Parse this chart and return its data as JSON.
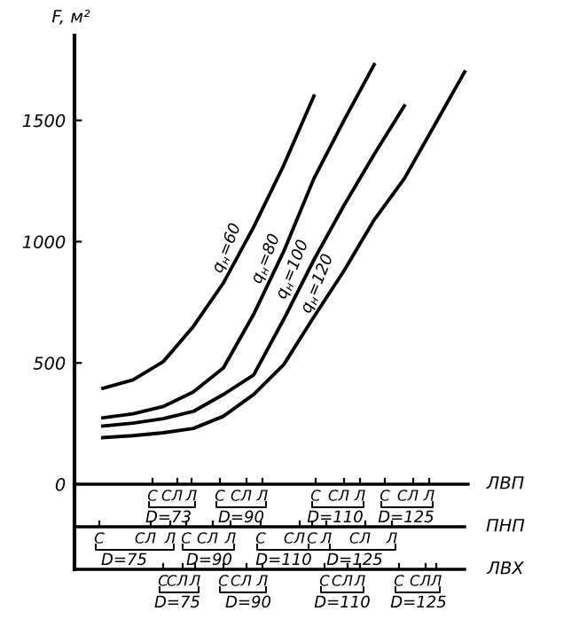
{
  "chart_data": {
    "type": "line",
    "ylabel": "F, м²",
    "categories": [
      null,
      null,
      null,
      null,
      null,
      null,
      null,
      null,
      null,
      null,
      null,
      null,
      null
    ],
    "series": [
      {
        "name": "q$_{н}$=60",
        "color": "#000000",
        "values": [
          395,
          430,
          505,
          650,
          830,
          1060,
          1315,
          1600,
          null,
          null,
          null,
          null,
          null
        ]
      },
      {
        "name": "q$_{н}$=80",
        "color": "#000000",
        "values": [
          274,
          290,
          320,
          380,
          480,
          700,
          960,
          1260,
          1500,
          1730,
          null,
          null,
          null
        ]
      },
      {
        "name": "q$_{н}$=100",
        "color": "#000000",
        "values": [
          240,
          252,
          270,
          300,
          370,
          450,
          680,
          925,
          1150,
          1360,
          1560,
          null,
          null
        ]
      },
      {
        "name": "q$_{н}$=120",
        "color": "#000000",
        "values": [
          192,
          200,
          212,
          230,
          280,
          370,
          493,
          690,
          880,
          1090,
          1260,
          1480,
          1700
        ]
      }
    ],
    "ylim": [
      0,
      1850
    ],
    "yticks": [
      0,
      500,
      1000,
      1500
    ],
    "grid": false,
    "legend": false,
    "marker": "none",
    "line_style": "solid",
    "tick_labels": "y",
    "annotations": [
      "ЛВП",
      "ПНП",
      "ЛВХ",
      "С",
      "СЛ",
      "Л",
      "D=73",
      "С",
      "СЛ",
      "Л",
      "D=90",
      "С",
      "СЛ",
      "Л",
      "D=110",
      "С",
      "СЛ",
      "Л",
      "D=125",
      "С",
      "СЛ",
      "Л",
      "D=75",
      "С",
      "СЛ",
      "Л",
      "D=90",
      "С",
      "СЛ",
      "Л",
      "D=110",
      "С",
      "СЛ",
      "Л",
      "D=125",
      "С",
      "СЛ",
      "Л",
      "D=75",
      "С",
      "СЛ",
      "Л",
      "D=90",
      "С",
      "СЛ",
      "Л",
      "D=110",
      "С",
      "СЛ",
      "Л",
      "D=125"
    ]
  }
}
